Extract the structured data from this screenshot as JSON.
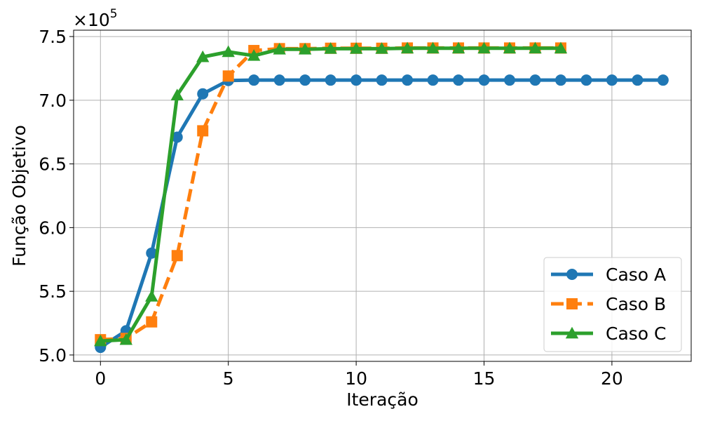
{
  "chart_data": {
    "type": "line",
    "xlabel": "Iteração",
    "ylabel": "Função Objetivo",
    "y_multiplier_label": "×10",
    "y_multiplier_exponent": "5",
    "xlim": [
      -1.05,
      23.1
    ],
    "ylim": [
      4.95,
      7.55
    ],
    "xticks": [
      0,
      5,
      10,
      15,
      20
    ],
    "xtick_labels": [
      "0",
      "5",
      "10",
      "15",
      "20"
    ],
    "yticks": [
      5.0,
      5.5,
      6.0,
      6.5,
      7.0,
      7.5
    ],
    "ytick_labels": [
      "5.0",
      "5.5",
      "6.0",
      "6.5",
      "7.0",
      "7.5"
    ],
    "grid": true,
    "legend_position": "lower-right",
    "series": [
      {
        "name": "Caso A",
        "color": "#1f77b4",
        "marker": "circle",
        "line_style": "solid",
        "x": [
          0,
          1,
          2,
          3,
          4,
          5,
          6,
          7,
          8,
          9,
          10,
          11,
          12,
          13,
          14,
          15,
          16,
          17,
          18,
          19,
          20,
          21,
          22
        ],
        "y": [
          5.06,
          5.19,
          5.8,
          6.71,
          7.05,
          7.155,
          7.158,
          7.158,
          7.158,
          7.158,
          7.158,
          7.158,
          7.158,
          7.158,
          7.158,
          7.158,
          7.158,
          7.158,
          7.158,
          7.158,
          7.158,
          7.158,
          7.158
        ]
      },
      {
        "name": "Caso B",
        "color": "#ff7f0e",
        "marker": "square",
        "line_style": "dashed",
        "x": [
          0,
          1,
          2,
          3,
          4,
          5,
          6,
          7,
          8,
          9,
          10,
          11,
          12,
          13,
          14,
          15,
          16,
          17,
          18
        ],
        "y": [
          5.12,
          5.13,
          5.26,
          5.78,
          6.76,
          7.19,
          7.39,
          7.405,
          7.405,
          7.408,
          7.408,
          7.408,
          7.41,
          7.41,
          7.41,
          7.41,
          7.41,
          7.41,
          7.41
        ]
      },
      {
        "name": "Caso C",
        "color": "#2ca02c",
        "marker": "triangle",
        "line_style": "solid",
        "x": [
          0,
          1,
          2,
          3,
          4,
          5,
          6,
          7,
          8,
          9,
          10,
          11,
          12,
          13,
          14,
          15,
          16,
          17,
          18
        ],
        "y": [
          5.11,
          5.12,
          5.46,
          7.04,
          7.34,
          7.38,
          7.35,
          7.4,
          7.4,
          7.405,
          7.405,
          7.405,
          7.408,
          7.408,
          7.408,
          7.408,
          7.408,
          7.408,
          7.408
        ]
      }
    ]
  }
}
